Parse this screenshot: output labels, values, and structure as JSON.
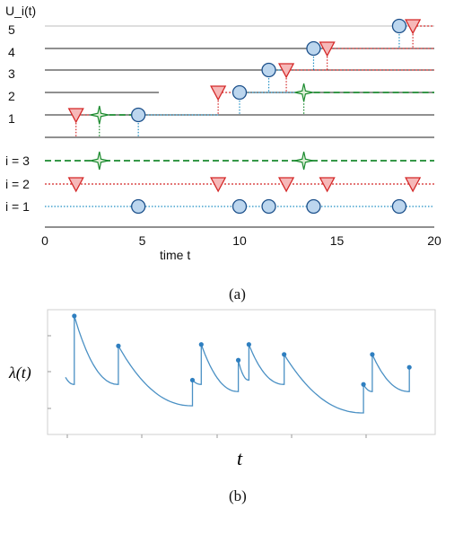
{
  "chart_data": [
    {
      "type": "scatter",
      "panel_label": "(a)",
      "ylabel": "U_i(t)",
      "xlabel": "time t",
      "xlim": [
        0,
        20
      ],
      "x_ticks": [
        0,
        5,
        10,
        15,
        20
      ],
      "level_ticks": [
        1,
        2,
        3,
        4,
        5
      ],
      "row_labels": [
        "i = 3",
        "i = 2",
        "i = 1"
      ],
      "colors": {
        "i1": "#1f8fc4",
        "i2": "#d42828",
        "i3": "#1a8a2e"
      },
      "series": [
        {
          "id": "i3",
          "row": 3,
          "marker": "star",
          "x": [
            2.8,
            13.3
          ]
        },
        {
          "id": "i2",
          "row": 2,
          "marker": "triangle",
          "x": [
            1.6,
            8.9,
            12.4,
            14.5,
            18.9
          ]
        },
        {
          "id": "i1",
          "row": 1,
          "marker": "circle",
          "x": [
            4.8,
            10.0,
            11.5,
            13.8,
            18.2
          ]
        }
      ],
      "utility_steps": [
        {
          "segments": [
            [
              1.6,
              2.8,
              "i2"
            ],
            [
              2.8,
              4.8,
              "i3"
            ],
            [
              4.8,
              8.9,
              "i1"
            ]
          ],
          "level": 1
        },
        {
          "segments": [
            [
              8.9,
              10.0,
              "i2"
            ],
            [
              10.0,
              13.3,
              "i1"
            ],
            [
              13.3,
              20.0,
              "i3"
            ]
          ],
          "level": 2
        },
        {
          "segments": [
            [
              11.5,
              12.4,
              "i1"
            ],
            [
              12.4,
              20.0,
              "i2"
            ]
          ],
          "level": 3
        },
        {
          "segments": [
            [
              13.8,
              14.5,
              "i1"
            ],
            [
              14.5,
              20.0,
              "i2"
            ]
          ],
          "level": 4
        },
        {
          "segments": [
            [
              18.2,
              18.9,
              "i1"
            ],
            [
              18.9,
              20.0,
              "i2"
            ]
          ],
          "level": 5
        }
      ]
    },
    {
      "type": "line",
      "panel_label": "(b)",
      "ylabel": "λ(t)",
      "xlabel": "t",
      "xlim": [
        0,
        10
      ],
      "ylim": [
        0,
        1
      ],
      "baseline": 0.1,
      "decay": 1.0,
      "start_value": 0.35,
      "events": [
        {
          "t": 0.25,
          "before": 0.3,
          "after": 0.78
        },
        {
          "t": 1.5,
          "before": 0.3,
          "after": 0.57
        },
        {
          "t": 3.6,
          "before": 0.15,
          "after": 0.33
        },
        {
          "t": 3.85,
          "before": 0.3,
          "after": 0.58
        },
        {
          "t": 4.9,
          "before": 0.25,
          "after": 0.47
        },
        {
          "t": 5.2,
          "before": 0.33,
          "after": 0.58
        },
        {
          "t": 6.2,
          "before": 0.3,
          "after": 0.51
        },
        {
          "t": 8.45,
          "before": 0.1,
          "after": 0.3
        },
        {
          "t": 8.7,
          "before": 0.25,
          "after": 0.51
        },
        {
          "t": 9.75,
          "before": 0.25,
          "after": 0.42
        }
      ],
      "t_end": 9.75,
      "line_color": "#4a90c4",
      "marker_color": "#2f7fc0"
    }
  ]
}
